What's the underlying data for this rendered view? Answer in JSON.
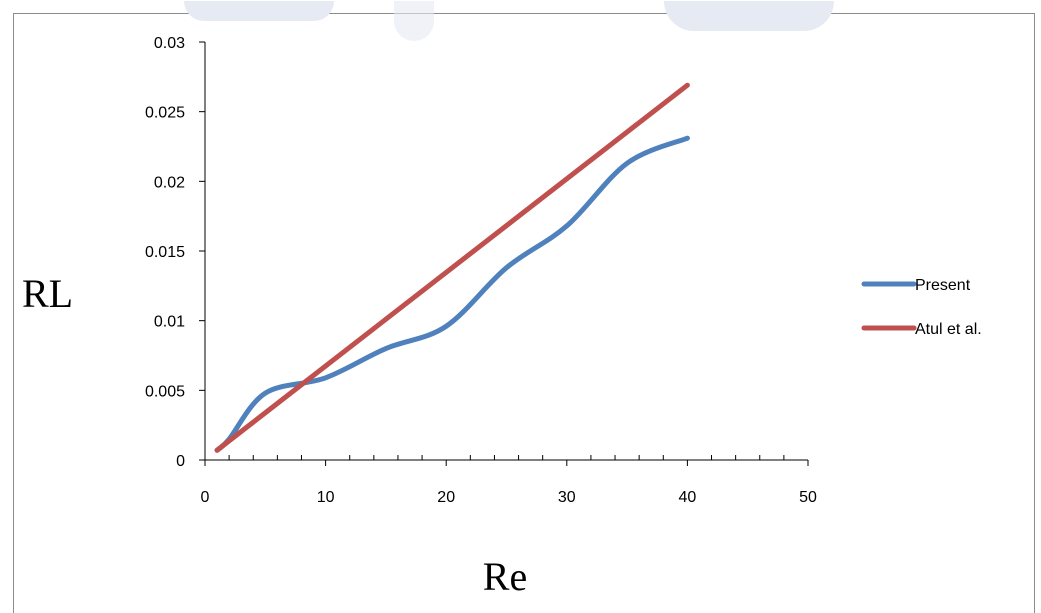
{
  "chart_data": {
    "type": "line",
    "xlabel": "Re",
    "ylabel": "RL",
    "xlim": [
      0,
      50
    ],
    "ylim": [
      0,
      0.03
    ],
    "x_ticks": [
      "0",
      "10",
      "20",
      "30",
      "40",
      "50"
    ],
    "y_ticks": [
      "0",
      "0.005",
      "0.01",
      "0.015",
      "0.02",
      "0.025",
      "0.03"
    ],
    "grid": false,
    "legend_position": "right",
    "series": [
      {
        "name": "Present",
        "color": "#4F81BD",
        "smooth": true,
        "x": [
          1,
          2,
          5,
          10,
          15,
          20,
          25,
          30,
          35,
          40
        ],
        "y": [
          0.0007,
          0.0015,
          0.0048,
          0.0059,
          0.008,
          0.0096,
          0.0138,
          0.0168,
          0.0213,
          0.0231
        ]
      },
      {
        "name": "Atul et al.",
        "color": "#C0504D",
        "smooth": false,
        "x": [
          1,
          40
        ],
        "y": [
          0.0007,
          0.0269
        ]
      }
    ]
  }
}
